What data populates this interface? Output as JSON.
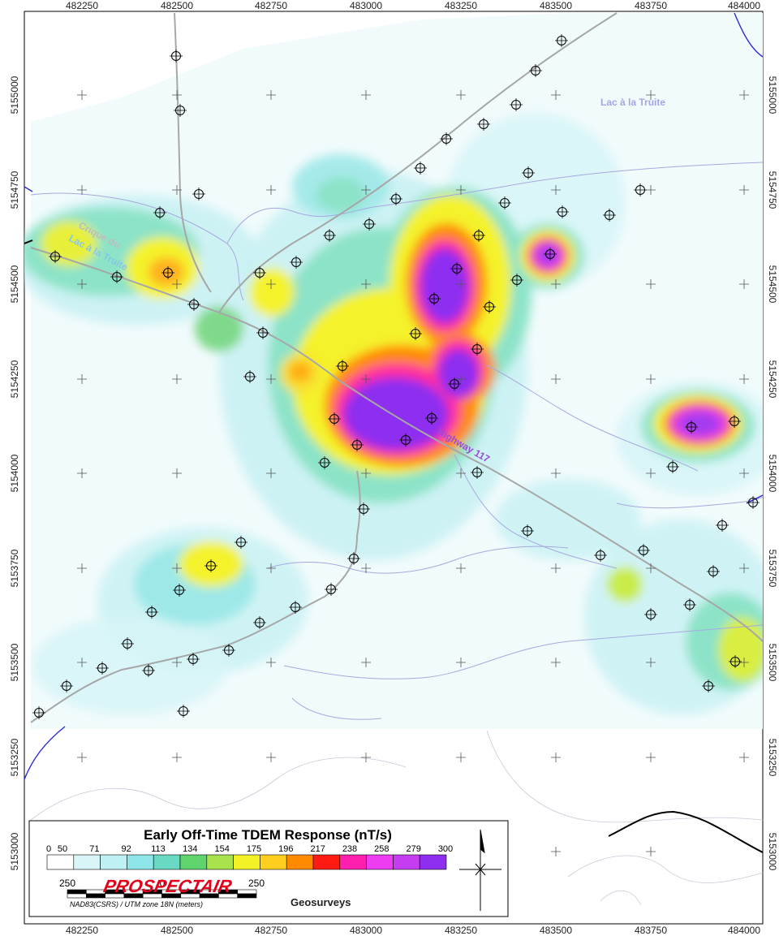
{
  "map": {
    "x_ticks": [
      "482250",
      "482500",
      "482750",
      "483000",
      "483250",
      "483500",
      "483750",
      "484000"
    ],
    "y_ticks": [
      "5155000",
      "5154750",
      "5154500",
      "5154250",
      "5154000",
      "5153750",
      "5153500",
      "5153250",
      "5153000"
    ],
    "place_labels": {
      "lake": "Lac à la Truite",
      "creek_1": "Crique du",
      "creek_2": "Lac à la Truite",
      "highway": "Highway 117"
    }
  },
  "legend": {
    "title": "Early Off-Time TDEM Response (nT/s)",
    "values": [
      "0",
      "50",
      "71",
      "92",
      "113",
      "134",
      "154",
      "175",
      "196",
      "217",
      "238",
      "258",
      "279",
      "300"
    ],
    "colors": [
      "#ffffff",
      "#d9f5f7",
      "#bff0f2",
      "#8fe6e8",
      "#69d9c4",
      "#5fd36c",
      "#a9e24c",
      "#f2f226",
      "#ffcf1f",
      "#ff8a00",
      "#ff1a12",
      "#ff1fae",
      "#ee3df0",
      "#c43df0",
      "#8e2ff0"
    ],
    "scale_labels": [
      "250",
      "0",
      "250"
    ],
    "projection": "NAD83(CSRS) / UTM zone 18N (meters)",
    "logo_main": "PROSPECTAIR",
    "logo_sub": "Geosurveys"
  }
}
